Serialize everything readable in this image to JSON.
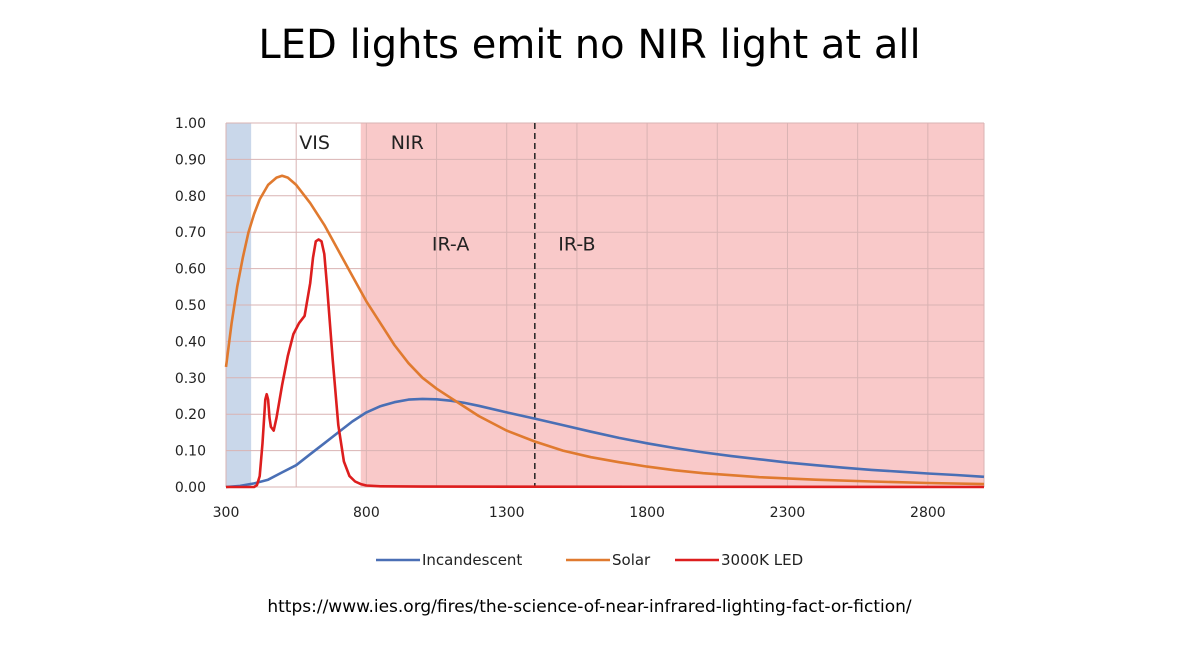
{
  "slide": {
    "title": "LED lights emit no NIR light at all",
    "source": "https://www.ies.org/fires/the-science-of-near-infrared-lighting-fact-or-fiction/"
  },
  "colors": {
    "uv_band": "#c9d7ea",
    "nir_band": "#f9c9c9",
    "grid": "#d9b3b3",
    "divider": "#222222"
  },
  "chart_data": {
    "type": "line",
    "title": "",
    "xlabel": "",
    "ylabel": "",
    "xlim": [
      300,
      3000
    ],
    "ylim": [
      0,
      1.0
    ],
    "x_ticks": [
      300,
      800,
      1300,
      1800,
      2300,
      2800
    ],
    "y_ticks": [
      "0.00",
      "0.10",
      "0.20",
      "0.30",
      "0.40",
      "0.50",
      "0.60",
      "0.70",
      "0.80",
      "0.90",
      "1.00"
    ],
    "grid": true,
    "legend": "bottom",
    "regions": [
      {
        "label": "",
        "from": 300,
        "to": 390,
        "color": "#c9d7ea"
      },
      {
        "label": "VIS",
        "from": 390,
        "to": 780,
        "color": "#ffffff"
      },
      {
        "label": "NIR",
        "from": 780,
        "to": 3000,
        "color": "#f9c9c9"
      }
    ],
    "annotations": [
      {
        "text": "IR-A",
        "x": 1100,
        "y": 0.65
      },
      {
        "text": "IR-B",
        "x": 1550,
        "y": 0.65
      }
    ],
    "divider_x": 1400,
    "series": [
      {
        "name": "Incandescent",
        "color": "#4a6fb5",
        "x": [
          300,
          350,
          400,
          450,
          500,
          550,
          600,
          650,
          700,
          750,
          800,
          850,
          900,
          950,
          1000,
          1050,
          1100,
          1150,
          1200,
          1300,
          1400,
          1500,
          1600,
          1700,
          1800,
          1900,
          2000,
          2100,
          2200,
          2300,
          2400,
          2500,
          2600,
          2700,
          2800,
          2900,
          3000
        ],
        "y": [
          0.0,
          0.003,
          0.01,
          0.02,
          0.04,
          0.06,
          0.09,
          0.12,
          0.15,
          0.18,
          0.205,
          0.222,
          0.233,
          0.24,
          0.242,
          0.241,
          0.237,
          0.231,
          0.223,
          0.205,
          0.188,
          0.17,
          0.152,
          0.135,
          0.12,
          0.107,
          0.095,
          0.085,
          0.076,
          0.067,
          0.06,
          0.053,
          0.047,
          0.042,
          0.037,
          0.033,
          0.028
        ]
      },
      {
        "name": "Solar",
        "color": "#e07a2f",
        "x": [
          300,
          320,
          340,
          360,
          380,
          400,
          420,
          450,
          480,
          500,
          520,
          550,
          600,
          650,
          700,
          750,
          800,
          850,
          900,
          950,
          1000,
          1050,
          1100,
          1150,
          1200,
          1300,
          1400,
          1500,
          1600,
          1700,
          1800,
          1900,
          2000,
          2200,
          2400,
          2600,
          2800,
          3000
        ],
        "y": [
          0.33,
          0.45,
          0.55,
          0.63,
          0.7,
          0.75,
          0.79,
          0.83,
          0.85,
          0.855,
          0.85,
          0.83,
          0.78,
          0.72,
          0.65,
          0.58,
          0.51,
          0.45,
          0.39,
          0.34,
          0.3,
          0.27,
          0.245,
          0.22,
          0.195,
          0.155,
          0.125,
          0.1,
          0.082,
          0.068,
          0.056,
          0.046,
          0.038,
          0.027,
          0.02,
          0.015,
          0.011,
          0.008
        ]
      },
      {
        "name": "3000K LED",
        "color": "#dd1e1e",
        "x": [
          300,
          400,
          410,
          420,
          430,
          440,
          445,
          450,
          455,
          460,
          470,
          480,
          500,
          520,
          540,
          560,
          580,
          600,
          610,
          620,
          630,
          640,
          650,
          660,
          680,
          700,
          720,
          740,
          760,
          780,
          800,
          850,
          1000,
          3000
        ],
        "y": [
          0.0,
          0.0,
          0.005,
          0.03,
          0.12,
          0.24,
          0.255,
          0.24,
          0.19,
          0.165,
          0.155,
          0.19,
          0.28,
          0.36,
          0.42,
          0.45,
          0.47,
          0.56,
          0.63,
          0.675,
          0.68,
          0.675,
          0.64,
          0.55,
          0.35,
          0.17,
          0.07,
          0.03,
          0.015,
          0.008,
          0.004,
          0.002,
          0.001,
          0.0
        ]
      }
    ]
  }
}
